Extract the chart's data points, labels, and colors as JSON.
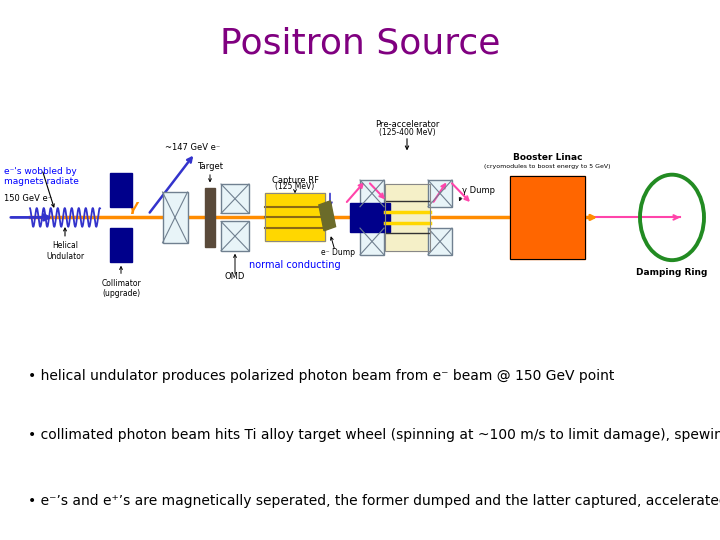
{
  "title": "Positron Source",
  "title_color": "#800080",
  "title_fontsize": 26,
  "bg_color": "#ffffff",
  "bullet_points": [
    "• helical undulator produces polarized photon beam from e⁻ beam @ 150 GeV point",
    "• collimated photon beam hits Ti alloy target wheel (spinning at ~100 m/s to limit damage), spewing pair-created e⁻’s and e⁺’s.",
    "• e⁻’s and e⁺’s are magnetically seperated, the former dumped and the latter captured, accelerated, and injected into the damping ring."
  ],
  "bullet_fontsize": 10,
  "orange_beam_color": "#FF8C00",
  "blue_beam_color": "#3333CC",
  "pink_color": "#FF44AA",
  "green_color": "#228B22",
  "dark_blue": "#00008B",
  "orange_box": "#FF6600",
  "yellow_fill": "#FFD700",
  "gray_optic": "#B0C4DE",
  "olive_color": "#6B6B2A"
}
